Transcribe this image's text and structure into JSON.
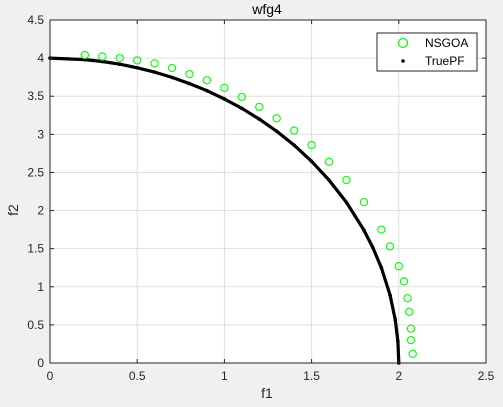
{
  "chart_data": {
    "type": "scatter",
    "title": "wfg4",
    "xlabel": "f1",
    "ylabel": "f2",
    "xlim": [
      0,
      2.5
    ],
    "ylim": [
      0,
      4.5
    ],
    "xticks": [
      "0",
      "0.5",
      "1",
      "1.5",
      "2",
      "2.5"
    ],
    "yticks": [
      "0",
      "0.5",
      "1",
      "1.5",
      "2",
      "2.5",
      "3",
      "3.5",
      "4",
      "4.5"
    ],
    "xtick_values": [
      0,
      0.5,
      1,
      1.5,
      2,
      2.5
    ],
    "ytick_values": [
      0,
      0.5,
      1,
      1.5,
      2,
      2.5,
      3,
      3.5,
      4,
      4.5
    ],
    "grid": true,
    "legend_position": "top-right",
    "series": [
      {
        "name": "NSGOA",
        "marker": "circle-open",
        "color": "#00ff00",
        "points": [
          [
            0.2,
            4.04
          ],
          [
            0.3,
            4.02
          ],
          [
            0.4,
            4.0
          ],
          [
            0.5,
            3.97
          ],
          [
            0.6,
            3.93
          ],
          [
            0.7,
            3.87
          ],
          [
            0.8,
            3.79
          ],
          [
            0.9,
            3.71
          ],
          [
            1.0,
            3.61
          ],
          [
            1.1,
            3.49
          ],
          [
            1.2,
            3.36
          ],
          [
            1.3,
            3.21
          ],
          [
            1.4,
            3.05
          ],
          [
            1.5,
            2.86
          ],
          [
            1.6,
            2.64
          ],
          [
            1.7,
            2.4
          ],
          [
            1.8,
            2.11
          ],
          [
            1.9,
            1.75
          ],
          [
            1.95,
            1.53
          ],
          [
            2.0,
            1.27
          ],
          [
            2.03,
            1.07
          ],
          [
            2.05,
            0.85
          ],
          [
            2.06,
            0.67
          ],
          [
            2.07,
            0.45
          ],
          [
            2.07,
            0.3
          ],
          [
            2.08,
            0.12
          ]
        ]
      },
      {
        "name": "TruePF",
        "marker": "dot",
        "color": "#000000",
        "points": [
          [
            0.0,
            4.0
          ],
          [
            0.1,
            3.99
          ],
          [
            0.2,
            3.98
          ],
          [
            0.3,
            3.955
          ],
          [
            0.4,
            3.92
          ],
          [
            0.5,
            3.873
          ],
          [
            0.6,
            3.816
          ],
          [
            0.7,
            3.747
          ],
          [
            0.8,
            3.666
          ],
          [
            0.9,
            3.572
          ],
          [
            1.0,
            3.464
          ],
          [
            1.1,
            3.341
          ],
          [
            1.2,
            3.2
          ],
          [
            1.3,
            3.04
          ],
          [
            1.4,
            2.857
          ],
          [
            1.5,
            2.646
          ],
          [
            1.6,
            2.4
          ],
          [
            1.7,
            2.107
          ],
          [
            1.8,
            1.744
          ],
          [
            1.85,
            1.52
          ],
          [
            1.9,
            1.249
          ],
          [
            1.95,
            0.889
          ],
          [
            1.98,
            0.564
          ],
          [
            1.995,
            0.283
          ],
          [
            2.0,
            0.0
          ]
        ]
      }
    ]
  }
}
